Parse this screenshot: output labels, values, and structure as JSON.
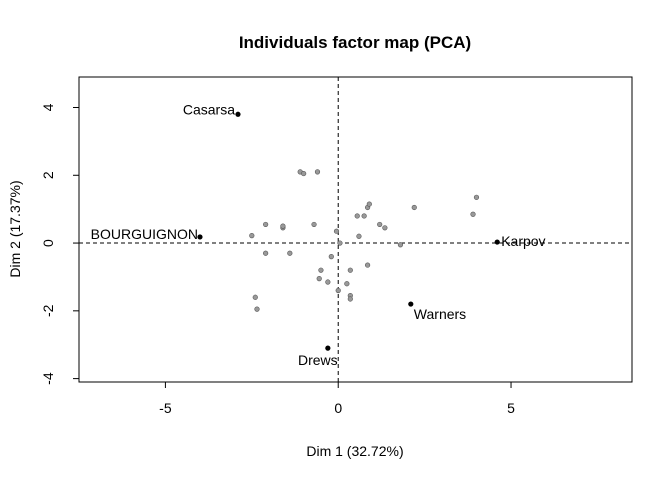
{
  "chart_data": {
    "type": "scatter",
    "title": "Individuals factor map (PCA)",
    "xlabel": "Dim 1 (32.72%)",
    "ylabel": "Dim 2 (17.37%)",
    "xlim": [
      -7.5,
      8.5
    ],
    "ylim": [
      -4.1,
      4.9
    ],
    "xticks": [
      -5,
      0,
      5
    ],
    "xtick_labels": [
      "-5",
      "0",
      "5"
    ],
    "yticks": [
      -4,
      -2,
      0,
      2,
      4
    ],
    "ytick_labels": [
      "-4",
      "-2",
      "0",
      "2",
      "4"
    ],
    "reference_lines": {
      "x": 0,
      "y": 0
    },
    "grid": false,
    "labeled_points": [
      {
        "label": "Casarsa",
        "x": -2.9,
        "y": 3.8
      },
      {
        "label": "BOURGUIGNON",
        "x": -4.0,
        "y": 0.18
      },
      {
        "label": "Karpov",
        "x": 4.6,
        "y": 0.03
      },
      {
        "label": "Warners",
        "x": 2.1,
        "y": -1.8
      },
      {
        "label": "Drews",
        "x": -0.3,
        "y": -3.1
      }
    ],
    "unlabeled_points": [
      {
        "x": -1.1,
        "y": 2.1
      },
      {
        "x": -1.0,
        "y": 2.05
      },
      {
        "x": -0.6,
        "y": 2.1
      },
      {
        "x": -2.1,
        "y": 0.55
      },
      {
        "x": -1.6,
        "y": 0.45
      },
      {
        "x": -1.6,
        "y": 0.5
      },
      {
        "x": -0.7,
        "y": 0.55
      },
      {
        "x": -2.5,
        "y": 0.22
      },
      {
        "x": -2.1,
        "y": -0.3
      },
      {
        "x": -1.4,
        "y": -0.3
      },
      {
        "x": -0.5,
        "y": -0.8
      },
      {
        "x": -0.2,
        "y": -0.4
      },
      {
        "x": -0.55,
        "y": -1.05
      },
      {
        "x": -0.3,
        "y": -1.15
      },
      {
        "x": 0.0,
        "y": -1.4
      },
      {
        "x": 0.25,
        "y": -1.2
      },
      {
        "x": 0.35,
        "y": -1.55
      },
      {
        "x": 0.35,
        "y": -1.65
      },
      {
        "x": -2.4,
        "y": -1.6
      },
      {
        "x": -2.35,
        "y": -1.95
      },
      {
        "x": 0.35,
        "y": -0.8
      },
      {
        "x": -0.05,
        "y": 0.35
      },
      {
        "x": 0.05,
        "y": 0.0
      },
      {
        "x": 0.55,
        "y": 0.8
      },
      {
        "x": 0.75,
        "y": 0.8
      },
      {
        "x": 0.85,
        "y": 1.05
      },
      {
        "x": 0.9,
        "y": 1.15
      },
      {
        "x": 0.6,
        "y": 0.2
      },
      {
        "x": 1.2,
        "y": 0.55
      },
      {
        "x": 1.35,
        "y": 0.45
      },
      {
        "x": 0.85,
        "y": -0.65
      },
      {
        "x": 1.8,
        "y": -0.05
      },
      {
        "x": 2.2,
        "y": 1.05
      },
      {
        "x": 3.9,
        "y": 0.85
      },
      {
        "x": 4.0,
        "y": 1.35
      }
    ],
    "labeled_point_color": "#000000",
    "unlabeled_point_color": "#999999"
  }
}
